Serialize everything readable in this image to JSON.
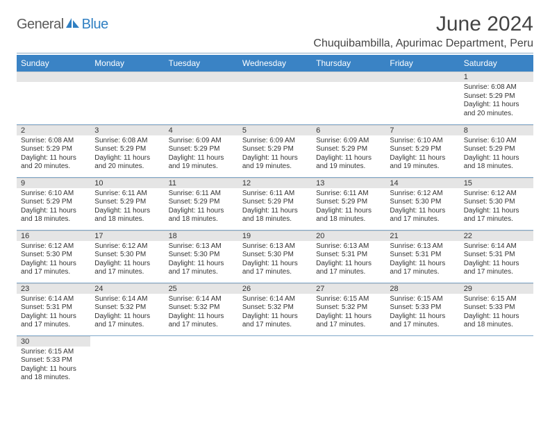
{
  "logo": {
    "part1": "General",
    "part2": "Blue"
  },
  "title": "June 2024",
  "location": "Chuquibambilla, Apurimac Department, Peru",
  "colors": {
    "header_bg": "#3a83c5",
    "header_fg": "#ffffff",
    "rule": "#8aa9c4",
    "daynum_bg": "#e5e5e5",
    "cell_border": "#7fa7c9",
    "logo_gray": "#5a5a5a",
    "logo_blue": "#2f7fc2"
  },
  "weekdays": [
    "Sunday",
    "Monday",
    "Tuesday",
    "Wednesday",
    "Thursday",
    "Friday",
    "Saturday"
  ],
  "weeks": [
    [
      null,
      null,
      null,
      null,
      null,
      null,
      {
        "n": "1",
        "sr": "Sunrise: 6:08 AM",
        "ss": "Sunset: 5:29 PM",
        "dl": "Daylight: 11 hours and 20 minutes."
      }
    ],
    [
      {
        "n": "2",
        "sr": "Sunrise: 6:08 AM",
        "ss": "Sunset: 5:29 PM",
        "dl": "Daylight: 11 hours and 20 minutes."
      },
      {
        "n": "3",
        "sr": "Sunrise: 6:08 AM",
        "ss": "Sunset: 5:29 PM",
        "dl": "Daylight: 11 hours and 20 minutes."
      },
      {
        "n": "4",
        "sr": "Sunrise: 6:09 AM",
        "ss": "Sunset: 5:29 PM",
        "dl": "Daylight: 11 hours and 19 minutes."
      },
      {
        "n": "5",
        "sr": "Sunrise: 6:09 AM",
        "ss": "Sunset: 5:29 PM",
        "dl": "Daylight: 11 hours and 19 minutes."
      },
      {
        "n": "6",
        "sr": "Sunrise: 6:09 AM",
        "ss": "Sunset: 5:29 PM",
        "dl": "Daylight: 11 hours and 19 minutes."
      },
      {
        "n": "7",
        "sr": "Sunrise: 6:10 AM",
        "ss": "Sunset: 5:29 PM",
        "dl": "Daylight: 11 hours and 19 minutes."
      },
      {
        "n": "8",
        "sr": "Sunrise: 6:10 AM",
        "ss": "Sunset: 5:29 PM",
        "dl": "Daylight: 11 hours and 18 minutes."
      }
    ],
    [
      {
        "n": "9",
        "sr": "Sunrise: 6:10 AM",
        "ss": "Sunset: 5:29 PM",
        "dl": "Daylight: 11 hours and 18 minutes."
      },
      {
        "n": "10",
        "sr": "Sunrise: 6:11 AM",
        "ss": "Sunset: 5:29 PM",
        "dl": "Daylight: 11 hours and 18 minutes."
      },
      {
        "n": "11",
        "sr": "Sunrise: 6:11 AM",
        "ss": "Sunset: 5:29 PM",
        "dl": "Daylight: 11 hours and 18 minutes."
      },
      {
        "n": "12",
        "sr": "Sunrise: 6:11 AM",
        "ss": "Sunset: 5:29 PM",
        "dl": "Daylight: 11 hours and 18 minutes."
      },
      {
        "n": "13",
        "sr": "Sunrise: 6:11 AM",
        "ss": "Sunset: 5:29 PM",
        "dl": "Daylight: 11 hours and 18 minutes."
      },
      {
        "n": "14",
        "sr": "Sunrise: 6:12 AM",
        "ss": "Sunset: 5:30 PM",
        "dl": "Daylight: 11 hours and 17 minutes."
      },
      {
        "n": "15",
        "sr": "Sunrise: 6:12 AM",
        "ss": "Sunset: 5:30 PM",
        "dl": "Daylight: 11 hours and 17 minutes."
      }
    ],
    [
      {
        "n": "16",
        "sr": "Sunrise: 6:12 AM",
        "ss": "Sunset: 5:30 PM",
        "dl": "Daylight: 11 hours and 17 minutes."
      },
      {
        "n": "17",
        "sr": "Sunrise: 6:12 AM",
        "ss": "Sunset: 5:30 PM",
        "dl": "Daylight: 11 hours and 17 minutes."
      },
      {
        "n": "18",
        "sr": "Sunrise: 6:13 AM",
        "ss": "Sunset: 5:30 PM",
        "dl": "Daylight: 11 hours and 17 minutes."
      },
      {
        "n": "19",
        "sr": "Sunrise: 6:13 AM",
        "ss": "Sunset: 5:30 PM",
        "dl": "Daylight: 11 hours and 17 minutes."
      },
      {
        "n": "20",
        "sr": "Sunrise: 6:13 AM",
        "ss": "Sunset: 5:31 PM",
        "dl": "Daylight: 11 hours and 17 minutes."
      },
      {
        "n": "21",
        "sr": "Sunrise: 6:13 AM",
        "ss": "Sunset: 5:31 PM",
        "dl": "Daylight: 11 hours and 17 minutes."
      },
      {
        "n": "22",
        "sr": "Sunrise: 6:14 AM",
        "ss": "Sunset: 5:31 PM",
        "dl": "Daylight: 11 hours and 17 minutes."
      }
    ],
    [
      {
        "n": "23",
        "sr": "Sunrise: 6:14 AM",
        "ss": "Sunset: 5:31 PM",
        "dl": "Daylight: 11 hours and 17 minutes."
      },
      {
        "n": "24",
        "sr": "Sunrise: 6:14 AM",
        "ss": "Sunset: 5:32 PM",
        "dl": "Daylight: 11 hours and 17 minutes."
      },
      {
        "n": "25",
        "sr": "Sunrise: 6:14 AM",
        "ss": "Sunset: 5:32 PM",
        "dl": "Daylight: 11 hours and 17 minutes."
      },
      {
        "n": "26",
        "sr": "Sunrise: 6:14 AM",
        "ss": "Sunset: 5:32 PM",
        "dl": "Daylight: 11 hours and 17 minutes."
      },
      {
        "n": "27",
        "sr": "Sunrise: 6:15 AM",
        "ss": "Sunset: 5:32 PM",
        "dl": "Daylight: 11 hours and 17 minutes."
      },
      {
        "n": "28",
        "sr": "Sunrise: 6:15 AM",
        "ss": "Sunset: 5:33 PM",
        "dl": "Daylight: 11 hours and 17 minutes."
      },
      {
        "n": "29",
        "sr": "Sunrise: 6:15 AM",
        "ss": "Sunset: 5:33 PM",
        "dl": "Daylight: 11 hours and 18 minutes."
      }
    ],
    [
      {
        "n": "30",
        "sr": "Sunrise: 6:15 AM",
        "ss": "Sunset: 5:33 PM",
        "dl": "Daylight: 11 hours and 18 minutes."
      },
      null,
      null,
      null,
      null,
      null,
      null
    ]
  ]
}
